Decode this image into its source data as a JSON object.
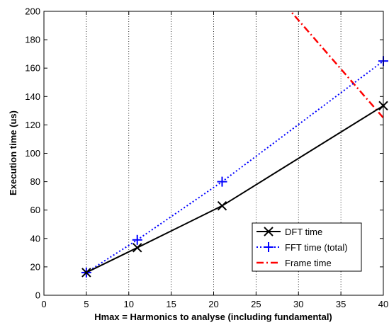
{
  "chart_data": {
    "type": "line",
    "xlabel": "Hmax = Harmonics to analyse (including fundamental)",
    "ylabel": "Execution time (us)",
    "xlim": [
      0,
      40
    ],
    "ylim": [
      0,
      200
    ],
    "xticks": [
      0,
      5,
      10,
      15,
      20,
      25,
      30,
      35,
      40
    ],
    "yticks": [
      0,
      20,
      40,
      60,
      80,
      100,
      120,
      140,
      160,
      180,
      200
    ],
    "grid": "vertical-dotted",
    "legend_position": "bottom-right",
    "series": [
      {
        "name": "DFT time",
        "color": "#000000",
        "line": "solid",
        "marker": "x",
        "x": [
          5,
          11,
          21,
          40
        ],
        "y": [
          16,
          33.5,
          63,
          133.5
        ]
      },
      {
        "name": "FFT time (total)",
        "color": "#0000ff",
        "line": "dotted",
        "marker": "plus",
        "x": [
          5,
          11,
          21,
          40
        ],
        "y": [
          16,
          39,
          80,
          165
        ]
      },
      {
        "name": "Frame time",
        "color": "#ff0000",
        "line": "dashdot",
        "marker": "none",
        "x": [
          0,
          40
        ],
        "y": [
          400,
          125
        ]
      }
    ]
  }
}
